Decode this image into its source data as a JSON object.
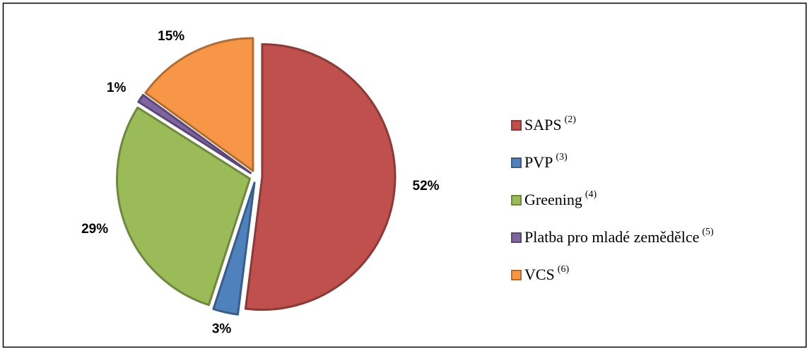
{
  "chart_data": {
    "type": "pie",
    "categories": [
      "SAPS",
      "PVP",
      "Greening",
      "Platba pro mladé zemědělce",
      "VCS"
    ],
    "category_notes": [
      "(2)",
      "(3)",
      "(4)",
      "(5)",
      "(6)"
    ],
    "values": [
      52,
      3,
      29,
      1,
      15
    ],
    "value_labels": [
      "52%",
      "3%",
      "29%",
      "1%",
      "15%"
    ],
    "colors": [
      "#c0504d",
      "#4f81bd",
      "#9bbb59",
      "#8064a2",
      "#f79646"
    ],
    "legend": "right"
  }
}
